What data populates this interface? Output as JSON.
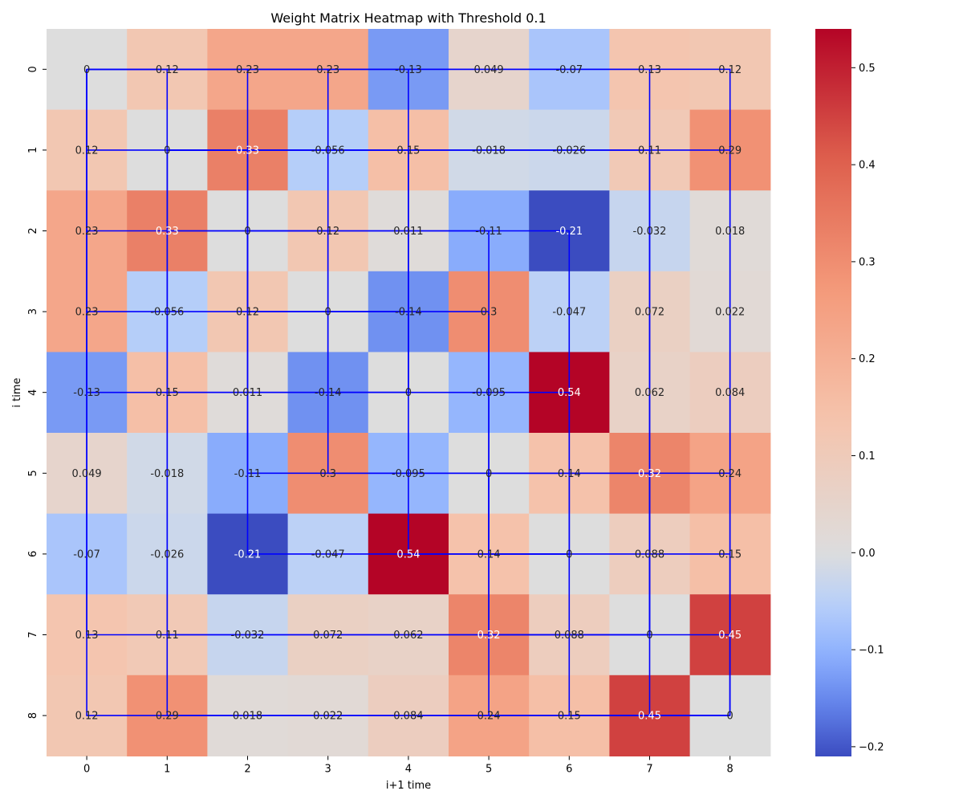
{
  "chart_data": {
    "type": "heatmap",
    "title": "Weight Matrix Heatmap with Threshold 0.1",
    "xlabel": "i+1 time",
    "ylabel": "i time",
    "x_categories": [
      "0",
      "1",
      "2",
      "3",
      "4",
      "5",
      "6",
      "7",
      "8"
    ],
    "y_categories": [
      "0",
      "1",
      "2",
      "3",
      "4",
      "5",
      "6",
      "7",
      "8"
    ],
    "values": [
      [
        0,
        0.12,
        0.23,
        0.23,
        -0.13,
        0.049,
        -0.07,
        0.13,
        0.12
      ],
      [
        0.12,
        0,
        0.33,
        -0.056,
        0.15,
        -0.018,
        -0.026,
        0.11,
        0.29
      ],
      [
        0.23,
        0.33,
        0,
        0.12,
        0.011,
        -0.11,
        -0.21,
        -0.032,
        0.018
      ],
      [
        0.23,
        -0.056,
        0.12,
        0,
        -0.14,
        0.3,
        -0.047,
        0.072,
        0.022
      ],
      [
        -0.13,
        0.15,
        0.011,
        -0.14,
        0,
        -0.095,
        0.54,
        0.062,
        0.084
      ],
      [
        0.049,
        -0.018,
        -0.11,
        0.3,
        -0.095,
        0,
        0.14,
        0.32,
        0.24
      ],
      [
        -0.07,
        -0.026,
        -0.21,
        -0.047,
        0.54,
        0.14,
        0,
        0.088,
        0.15
      ],
      [
        0.13,
        0.11,
        -0.032,
        0.072,
        0.062,
        0.32,
        0.088,
        0,
        0.45
      ],
      [
        0.12,
        0.29,
        0.018,
        0.022,
        0.084,
        0.24,
        0.15,
        0.45,
        0
      ]
    ],
    "value_labels": [
      [
        "0",
        "0.12",
        "0.23",
        "0.23",
        "-0.13",
        "0.049",
        "-0.07",
        "0.13",
        "0.12"
      ],
      [
        "0.12",
        "0",
        "0.33",
        "-0.056",
        "0.15",
        "-0.018",
        "-0.026",
        "0.11",
        "0.29"
      ],
      [
        "0.23",
        "0.33",
        "0",
        "0.12",
        "0.011",
        "-0.11",
        "-0.21",
        "-0.032",
        "0.018"
      ],
      [
        "0.23",
        "-0.056",
        "0.12",
        "0",
        "-0.14",
        "0.3",
        "-0.047",
        "0.072",
        "0.022"
      ],
      [
        "-0.13",
        "0.15",
        "0.011",
        "-0.14",
        "0",
        "-0.095",
        "0.54",
        "0.062",
        "0.084"
      ],
      [
        "0.049",
        "-0.018",
        "-0.11",
        "0.3",
        "-0.095",
        "0",
        "0.14",
        "0.32",
        "0.24"
      ],
      [
        "-0.07",
        "-0.026",
        "-0.21",
        "-0.047",
        "0.54",
        "0.14",
        "0",
        "0.088",
        "0.15"
      ],
      [
        "0.13",
        "0.11",
        "-0.032",
        "0.072",
        "0.062",
        "0.32",
        "0.088",
        "0",
        "0.45"
      ],
      [
        "0.12",
        "0.29",
        "0.018",
        "0.022",
        "0.084",
        "0.24",
        "0.15",
        "0.45",
        "0"
      ]
    ],
    "threshold": 0.1,
    "colormap": "coolwarm",
    "color_range": [
      -0.21,
      0.54
    ],
    "colorbar": {
      "ticks": [
        -0.2,
        -0.1,
        0.0,
        0.1,
        0.2,
        0.3,
        0.4,
        0.5
      ],
      "tick_labels": [
        "−0.2",
        "−0.1",
        "0.0",
        "0.1",
        "0.2",
        "0.3",
        "0.4",
        "0.5"
      ]
    },
    "annotation_text_colors": {
      "dark": "#262626",
      "light": "#ffffff"
    },
    "connection_color": "#0000ff",
    "grid": false
  }
}
